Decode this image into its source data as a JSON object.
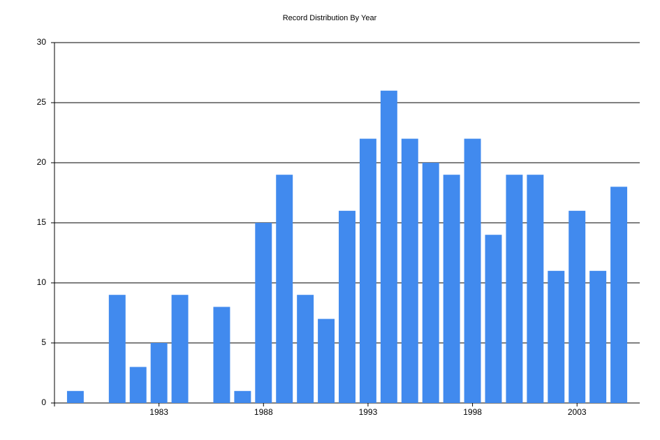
{
  "chart_data": {
    "type": "bar",
    "title": "Record Distribution By Year",
    "x": [
      1979,
      1981,
      1982,
      1983,
      1984,
      1986,
      1987,
      1988,
      1989,
      1990,
      1991,
      1992,
      1993,
      1994,
      1995,
      1996,
      1997,
      1998,
      1999,
      2000,
      2001,
      2002,
      2003,
      2004,
      2005
    ],
    "values": [
      1,
      9,
      3,
      5,
      9,
      8,
      1,
      15,
      19,
      9,
      7,
      16,
      22,
      26,
      22,
      20,
      19,
      22,
      14,
      19,
      19,
      11,
      16,
      11,
      18
    ],
    "color": "#418aee",
    "xlim": [
      1978,
      2006
    ],
    "xticks": [
      1983,
      1988,
      1993,
      1998,
      2003
    ],
    "ylim": [
      0,
      30
    ],
    "yticks": [
      0,
      5,
      10,
      15,
      20,
      25,
      30
    ],
    "grid": true
  }
}
